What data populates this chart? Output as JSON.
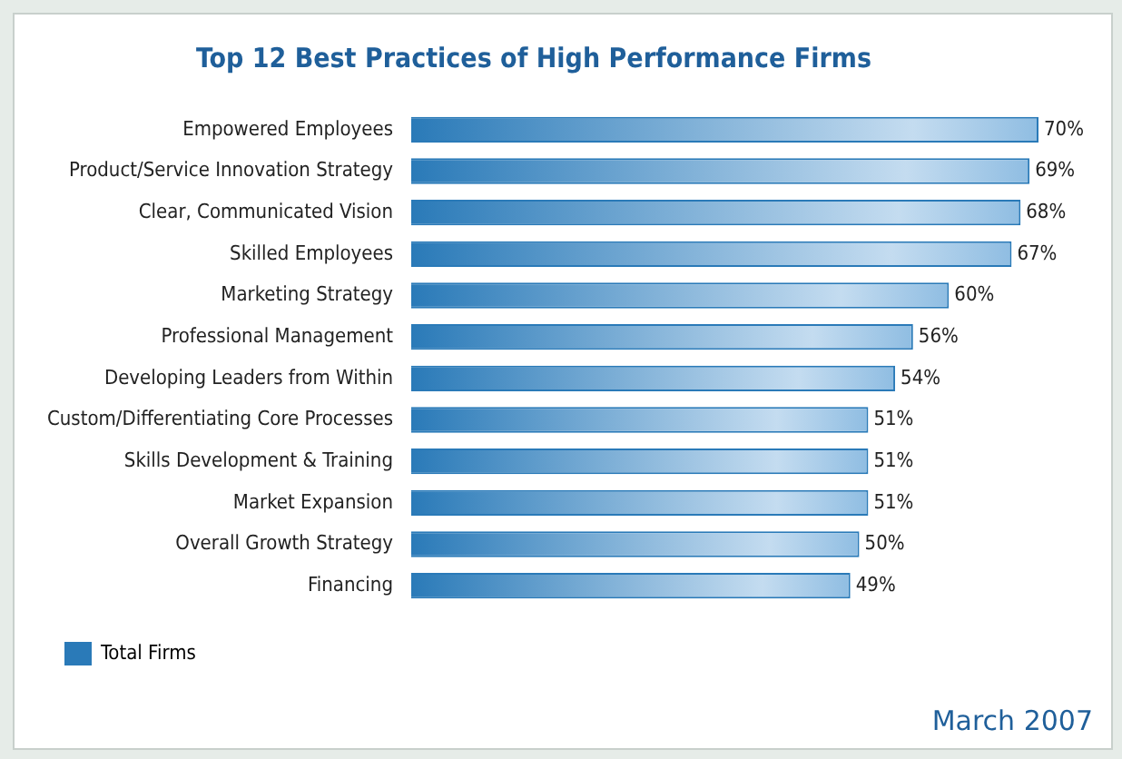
{
  "chart_data": {
    "type": "bar",
    "orientation": "horizontal",
    "title": "Top 12 Best Practices of High Performance Firms",
    "categories": [
      "Empowered Employees",
      "Product/Service Innovation Strategy",
      "Clear, Communicated Vision",
      "Skilled Employees",
      "Marketing Strategy",
      "Professional Management",
      "Developing Leaders from Within",
      "Custom/Differentiating Core Processes",
      "Skills Development & Training",
      "Market Expansion",
      "Overall Growth Strategy",
      "Financing"
    ],
    "series": [
      {
        "name": "Total Firms",
        "color": "#2a7ab8",
        "values": [
          70,
          69,
          68,
          67,
          60,
          56,
          54,
          51,
          51,
          51,
          50,
          49
        ],
        "value_labels": [
          "70%",
          "69%",
          "68%",
          "67%",
          "60%",
          "56%",
          "54%",
          "51%",
          "51%",
          "51%",
          "50%",
          "49%"
        ]
      }
    ],
    "legend": "bottom left",
    "grid": false,
    "tick_labels": "y",
    "annotations": [
      "March 2007"
    ]
  }
}
